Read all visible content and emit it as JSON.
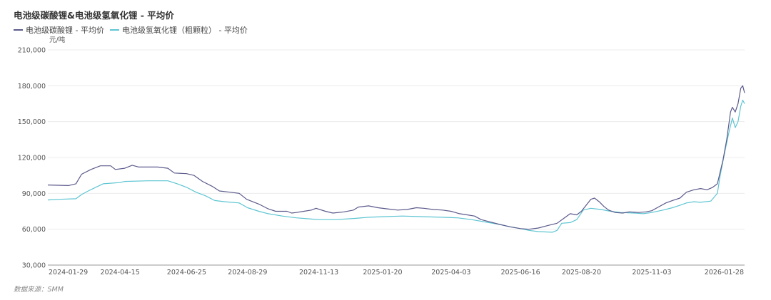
{
  "source": "数据来源：SMM",
  "chart_data": {
    "type": "line",
    "title": "电池级碳酸锂&电池级氢氧化锂 - 平均价",
    "unit": "元/吨",
    "ylim": [
      30000,
      210000
    ],
    "yticks": [
      30000,
      60000,
      90000,
      120000,
      150000,
      180000,
      210000
    ],
    "ytick_labels": [
      "30,000",
      "60,000",
      "90,000",
      "120,000",
      "150,000",
      "180,000",
      "210,000"
    ],
    "xtick_labels": [
      "2024-01-29",
      "2024-04-15",
      "2024-06-25",
      "2024-08-29",
      "2024-11-13",
      "2025-01-20",
      "2025-04-03",
      "2025-06-16",
      "2025-08-20",
      "2025-11-03",
      "2026-01-28"
    ],
    "grid": true,
    "legend_position": "top-left",
    "series": [
      {
        "name": "电池级碳酸锂 - 平均价",
        "color": "#5b5a8c",
        "points": [
          [
            "2024-01-29",
            97000
          ],
          [
            "2024-02-20",
            96500
          ],
          [
            "2024-02-28",
            98000
          ],
          [
            "2024-03-05",
            106000
          ],
          [
            "2024-03-15",
            110000
          ],
          [
            "2024-03-25",
            113000
          ],
          [
            "2024-04-05",
            113000
          ],
          [
            "2024-04-10",
            110000
          ],
          [
            "2024-04-20",
            111000
          ],
          [
            "2024-04-28",
            113500
          ],
          [
            "2024-05-05",
            112000
          ],
          [
            "2024-05-25",
            112000
          ],
          [
            "2024-06-05",
            111000
          ],
          [
            "2024-06-12",
            107000
          ],
          [
            "2024-06-25",
            106500
          ],
          [
            "2024-07-03",
            105000
          ],
          [
            "2024-07-12",
            100000
          ],
          [
            "2024-07-22",
            96000
          ],
          [
            "2024-07-30",
            92000
          ],
          [
            "2024-08-10",
            91000
          ],
          [
            "2024-08-20",
            90000
          ],
          [
            "2024-08-28",
            85000
          ],
          [
            "2024-09-10",
            81000
          ],
          [
            "2024-09-20",
            77000
          ],
          [
            "2024-09-28",
            75000
          ],
          [
            "2024-10-10",
            75000
          ],
          [
            "2024-10-15",
            73500
          ],
          [
            "2024-10-20",
            74000
          ],
          [
            "2024-10-28",
            75000
          ],
          [
            "2024-11-05",
            76000
          ],
          [
            "2024-11-10",
            77500
          ],
          [
            "2024-11-20",
            75000
          ],
          [
            "2024-11-28",
            73500
          ],
          [
            "2024-12-10",
            74500
          ],
          [
            "2024-12-20",
            76000
          ],
          [
            "2024-12-25",
            78500
          ],
          [
            "2025-01-05",
            79500
          ],
          [
            "2025-01-15",
            78000
          ],
          [
            "2025-01-25",
            77000
          ],
          [
            "2025-02-05",
            76000
          ],
          [
            "2025-02-15",
            76500
          ],
          [
            "2025-02-25",
            78000
          ],
          [
            "2025-03-05",
            77500
          ],
          [
            "2025-03-15",
            76500
          ],
          [
            "2025-03-25",
            76000
          ],
          [
            "2025-04-03",
            75000
          ],
          [
            "2025-04-12",
            73000
          ],
          [
            "2025-04-20",
            72000
          ],
          [
            "2025-04-28",
            71000
          ],
          [
            "2025-05-05",
            68000
          ],
          [
            "2025-05-15",
            66000
          ],
          [
            "2025-05-25",
            64000
          ],
          [
            "2025-06-05",
            62000
          ],
          [
            "2025-06-16",
            60500
          ],
          [
            "2025-06-25",
            60000
          ],
          [
            "2025-07-05",
            61000
          ],
          [
            "2025-07-15",
            63000
          ],
          [
            "2025-07-25",
            65000
          ],
          [
            "2025-08-01",
            69000
          ],
          [
            "2025-08-08",
            73000
          ],
          [
            "2025-08-15",
            72000
          ],
          [
            "2025-08-20",
            75000
          ],
          [
            "2025-08-25",
            80000
          ],
          [
            "2025-08-30",
            85000
          ],
          [
            "2025-09-03",
            86000
          ],
          [
            "2025-09-08",
            83000
          ],
          [
            "2025-09-13",
            79000
          ],
          [
            "2025-09-18",
            76000
          ],
          [
            "2025-09-25",
            74000
          ],
          [
            "2025-10-03",
            73500
          ],
          [
            "2025-10-10",
            74500
          ],
          [
            "2025-10-20",
            74000
          ],
          [
            "2025-10-28",
            74500
          ],
          [
            "2025-11-03",
            75500
          ],
          [
            "2025-11-10",
            78500
          ],
          [
            "2025-11-18",
            82000
          ],
          [
            "2025-11-25",
            84000
          ],
          [
            "2025-12-03",
            86000
          ],
          [
            "2025-12-10",
            91000
          ],
          [
            "2025-12-18",
            93000
          ],
          [
            "2025-12-25",
            94000
          ],
          [
            "2026-01-01",
            93000
          ],
          [
            "2026-01-07",
            95000
          ],
          [
            "2026-01-12",
            98000
          ],
          [
            "2026-01-18",
            118000
          ],
          [
            "2026-01-22",
            135000
          ],
          [
            "2026-01-26",
            158000
          ],
          [
            "2026-01-28",
            162000
          ],
          [
            "2026-01-31",
            158000
          ],
          [
            "2026-02-03",
            165000
          ],
          [
            "2026-02-06",
            178000
          ],
          [
            "2026-02-08",
            180000
          ],
          [
            "2026-02-10",
            174000
          ]
        ]
      },
      {
        "name": "电池级氢氧化锂（粗颗粒） - 平均价",
        "color": "#5ec5d2",
        "points": [
          [
            "2024-01-29",
            84500
          ],
          [
            "2024-02-10",
            85000
          ],
          [
            "2024-02-28",
            85500
          ],
          [
            "2024-03-05",
            89000
          ],
          [
            "2024-03-12",
            92000
          ],
          [
            "2024-03-20",
            95000
          ],
          [
            "2024-03-28",
            98000
          ],
          [
            "2024-04-15",
            99000
          ],
          [
            "2024-04-20",
            100000
          ],
          [
            "2024-05-15",
            100500
          ],
          [
            "2024-06-05",
            100500
          ],
          [
            "2024-06-15",
            98000
          ],
          [
            "2024-06-25",
            95000
          ],
          [
            "2024-07-05",
            91000
          ],
          [
            "2024-07-15",
            88000
          ],
          [
            "2024-07-25",
            84000
          ],
          [
            "2024-08-05",
            83000
          ],
          [
            "2024-08-20",
            82000
          ],
          [
            "2024-08-29",
            78000
          ],
          [
            "2024-09-10",
            75000
          ],
          [
            "2024-09-20",
            73000
          ],
          [
            "2024-10-05",
            71000
          ],
          [
            "2024-10-20",
            69500
          ],
          [
            "2024-11-05",
            68500
          ],
          [
            "2024-11-13",
            68000
          ],
          [
            "2024-12-01",
            68000
          ],
          [
            "2024-12-20",
            69000
          ],
          [
            "2025-01-05",
            70000
          ],
          [
            "2025-01-20",
            70500
          ],
          [
            "2025-02-10",
            71000
          ],
          [
            "2025-03-05",
            70500
          ],
          [
            "2025-03-25",
            70000
          ],
          [
            "2025-04-10",
            69500
          ],
          [
            "2025-04-25",
            68000
          ],
          [
            "2025-05-10",
            66000
          ],
          [
            "2025-05-25",
            64000
          ],
          [
            "2025-06-05",
            62000
          ],
          [
            "2025-06-16",
            60500
          ],
          [
            "2025-06-25",
            59000
          ],
          [
            "2025-07-05",
            58000
          ],
          [
            "2025-07-20",
            57500
          ],
          [
            "2025-07-25",
            59000
          ],
          [
            "2025-07-30",
            65000
          ],
          [
            "2025-08-08",
            65500
          ],
          [
            "2025-08-15",
            68000
          ],
          [
            "2025-08-22",
            76000
          ],
          [
            "2025-08-30",
            77500
          ],
          [
            "2025-09-10",
            76500
          ],
          [
            "2025-09-20",
            75000
          ],
          [
            "2025-10-01",
            74000
          ],
          [
            "2025-10-15",
            73500
          ],
          [
            "2025-10-25",
            73000
          ],
          [
            "2025-11-03",
            74000
          ],
          [
            "2025-11-15",
            76000
          ],
          [
            "2025-11-25",
            78000
          ],
          [
            "2025-12-03",
            80000
          ],
          [
            "2025-12-10",
            82000
          ],
          [
            "2025-12-18",
            83000
          ],
          [
            "2025-12-25",
            82500
          ],
          [
            "2026-01-05",
            83500
          ],
          [
            "2026-01-12",
            90000
          ],
          [
            "2026-01-15",
            105000
          ],
          [
            "2026-01-20",
            125000
          ],
          [
            "2026-01-24",
            140000
          ],
          [
            "2026-01-28",
            153000
          ],
          [
            "2026-01-31",
            145000
          ],
          [
            "2026-02-03",
            150000
          ],
          [
            "2026-02-06",
            163000
          ],
          [
            "2026-02-08",
            168000
          ],
          [
            "2026-02-10",
            165000
          ]
        ]
      }
    ]
  }
}
